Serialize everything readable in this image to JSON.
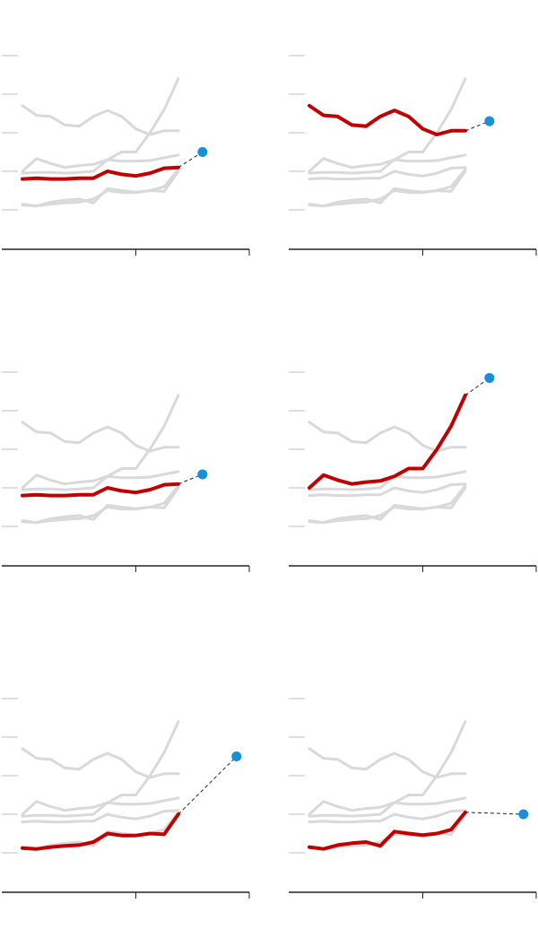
{
  "colors": {
    "highlight": "#c00000",
    "context": "#d9d9d9",
    "marker": "#1a8fd9",
    "axis": "#222222",
    "gridtick": "#cccccc"
  },
  "chart_data": {
    "type": "line",
    "title": "",
    "xlabel": "",
    "ylabel": "",
    "ylim": [
      0,
      5
    ],
    "xlim": [
      0,
      16
    ],
    "x": [
      0,
      1,
      2,
      3,
      4,
      5,
      6,
      7,
      8,
      9,
      10,
      11
    ],
    "series": [
      {
        "values": [
          3.7,
          3.45,
          3.42,
          3.2,
          3.17,
          3.42,
          3.58,
          3.42,
          3.1,
          2.95,
          3.05,
          3.05
        ]
      },
      {
        "values": [
          2.0,
          2.33,
          2.2,
          2.1,
          2.15,
          2.18,
          2.3,
          2.5,
          2.5,
          3.0,
          3.6,
          4.4
        ]
      },
      {
        "values": [
          1.95,
          1.97,
          1.97,
          1.95,
          1.97,
          2.0,
          2.3,
          2.26,
          2.26,
          2.28,
          2.35,
          2.42
        ]
      },
      {
        "values": [
          1.8,
          1.82,
          1.8,
          1.8,
          1.82,
          1.82,
          2.0,
          1.92,
          1.88,
          1.95,
          2.08,
          2.1
        ]
      },
      {
        "values": [
          1.15,
          1.1,
          1.2,
          1.25,
          1.28,
          1.18,
          1.55,
          1.5,
          1.46,
          1.5,
          1.6,
          2.05
        ]
      },
      {
        "values": [
          1.12,
          1.1,
          1.15,
          1.18,
          1.2,
          1.28,
          1.5,
          1.45,
          1.45,
          1.5,
          1.48,
          2.0
        ]
      }
    ],
    "panels": [
      {
        "highlight": 3,
        "projection": {
          "x": 12.7,
          "y": 2.5
        }
      },
      {
        "highlight": 0,
        "projection": {
          "x": 12.7,
          "y": 3.3
        }
      },
      {
        "highlight": 3,
        "projection": {
          "x": 12.7,
          "y": 2.35
        }
      },
      {
        "highlight": 1,
        "projection": {
          "x": 12.7,
          "y": 4.85
        }
      },
      {
        "highlight": 5,
        "projection": {
          "x": 15.1,
          "y": 3.5
        }
      },
      {
        "highlight": 4,
        "projection": {
          "x": 15.1,
          "y": 2.0
        }
      }
    ]
  }
}
